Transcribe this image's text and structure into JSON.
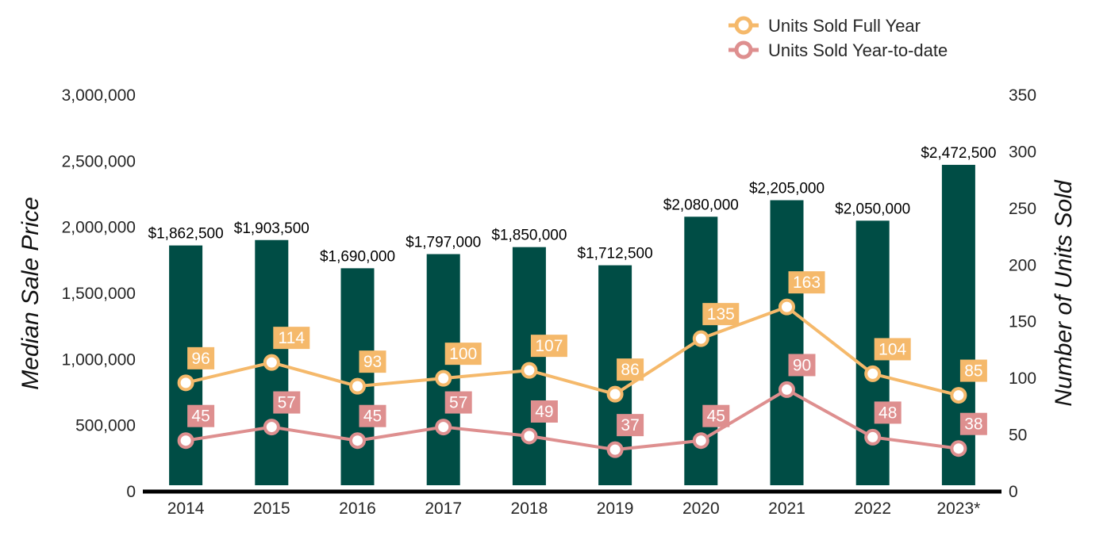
{
  "colors": {
    "bar": "#004d45",
    "full_year": "#f5b96b",
    "ytd": "#de8f8f",
    "axis": "#000000"
  },
  "chart_data": {
    "type": "bar",
    "categories": [
      "2014",
      "2015",
      "2016",
      "2017",
      "2018",
      "2019",
      "2020",
      "2021",
      "2022",
      "2023*"
    ],
    "left_axis": {
      "label": "Median Sale Price",
      "range": [
        0,
        3000000
      ],
      "ticks": [
        "0",
        "500,000",
        "1,000,000",
        "1,500,000",
        "2,000,000",
        "2,500,000",
        "3,000,000"
      ]
    },
    "right_axis": {
      "label": "Number of Units Sold",
      "range": [
        0,
        350
      ],
      "ticks": [
        "0",
        "50",
        "100",
        "150",
        "200",
        "250",
        "300",
        "350"
      ]
    },
    "grid": false,
    "legend_position": "top-right",
    "series": [
      {
        "type": "bar",
        "axis": "left",
        "values": [
          1862500,
          1903500,
          1690000,
          1797000,
          1850000,
          1712500,
          2080000,
          2205000,
          2050000,
          2472500
        ],
        "labels": [
          "$1,862,500",
          "$1,903,500",
          "$1,690,000",
          "$1,797,000",
          "$1,850,000",
          "$1,712,500",
          "$2,080,000",
          "$2,205,000",
          "$2,050,000",
          "$2,472,500"
        ]
      },
      {
        "type": "line",
        "axis": "right",
        "name": "Units Sold Full Year",
        "values": [
          96,
          114,
          93,
          100,
          107,
          86,
          135,
          163,
          104,
          85
        ]
      },
      {
        "type": "line",
        "axis": "right",
        "name": "Units Sold Year-to-date",
        "values": [
          45,
          57,
          45,
          57,
          49,
          37,
          45,
          90,
          48,
          38
        ]
      }
    ]
  }
}
